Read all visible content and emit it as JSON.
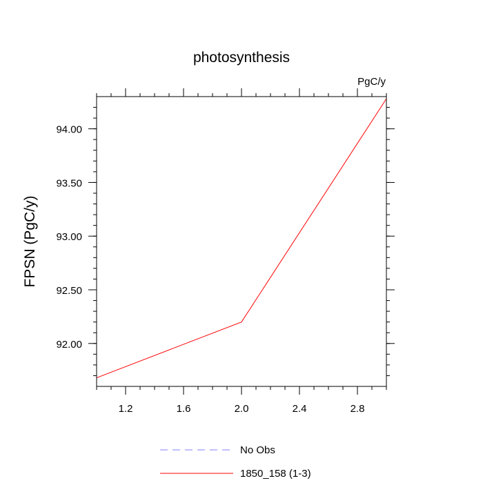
{
  "chart_data": {
    "type": "line",
    "title": "photosynthesis",
    "units_label": "PgC/y",
    "ylabel": "FPSN  (PgC/y)",
    "xlabel": "",
    "xlim": [
      1.0,
      3.0
    ],
    "ylim": [
      91.6,
      94.3
    ],
    "x_ticks": [
      "1.2",
      "1.6",
      "2.0",
      "2.4",
      "2.8"
    ],
    "y_ticks": [
      "92.00",
      "92.50",
      "93.00",
      "93.50",
      "94.00"
    ],
    "grid": false,
    "legend_position": "bottom",
    "series": [
      {
        "name": "No Obs",
        "color": "#8080ff",
        "style": "dashed",
        "x": [],
        "y": []
      },
      {
        "name": "1850_158 (1-3)",
        "color": "#ff0000",
        "style": "solid",
        "x": [
          1.0,
          2.0,
          3.0
        ],
        "y": [
          91.68,
          92.2,
          94.28
        ]
      }
    ]
  }
}
